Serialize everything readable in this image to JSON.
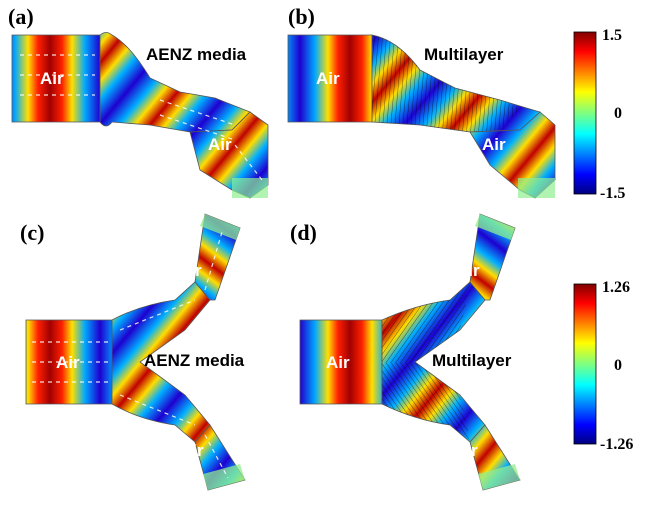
{
  "panels": {
    "a": {
      "letter": "(a)",
      "air_in": "Air",
      "media": "AENZ media",
      "air_out": "Air"
    },
    "b": {
      "letter": "(b)",
      "air_in": "Air",
      "media": "Multilayer",
      "air_out": "Air"
    },
    "c": {
      "letter": "(c)",
      "air_in": "Air",
      "air_top": "Air",
      "media": "AENZ media",
      "air_bottom": "Air"
    },
    "d": {
      "letter": "(d)",
      "air_in": "Air",
      "air_top": "Air",
      "media": "Multilayer",
      "air_bottom": "Air"
    }
  },
  "colorbars": [
    {
      "max": "1.5",
      "mid": "0",
      "min": "-1.5"
    },
    {
      "max": "1.26",
      "mid": "0",
      "min": "-1.26"
    }
  ]
}
